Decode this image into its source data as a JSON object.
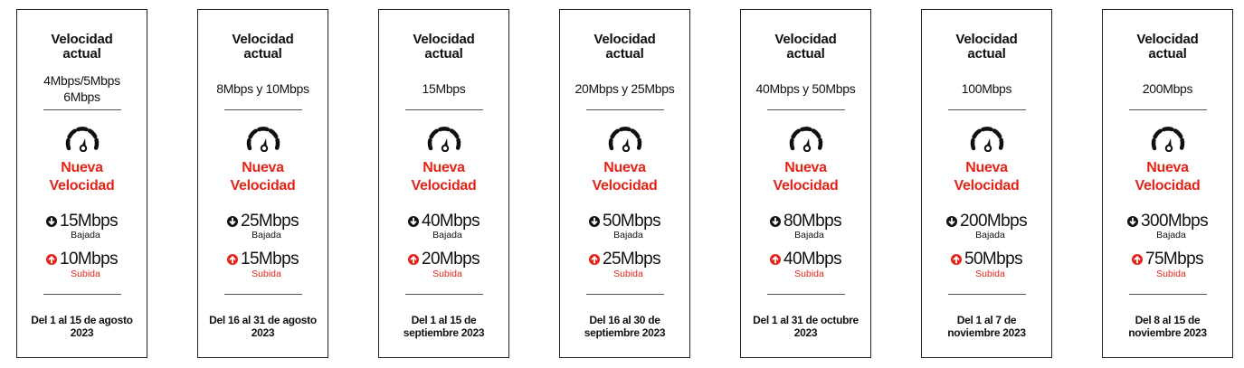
{
  "colors": {
    "accent_red": "#e1251b",
    "text": "#111111",
    "border": "#222222"
  },
  "icons": {
    "gauge": "speedometer-icon",
    "down": "download-arrow-icon",
    "up": "upload-arrow-icon"
  },
  "cards": [
    {
      "title": "Velocidad\nactual",
      "current": "4Mbps/5Mbps\n6Mbps",
      "new_label": "Nueva\nVelocidad",
      "down": "15Mbps",
      "down_label": "Bajada",
      "up": "10Mbps",
      "up_label": "Subida",
      "period": "Del 1 al 15 de agosto\n2023"
    },
    {
      "title": "Velocidad\nactual",
      "current": "8Mbps y 10Mbps",
      "new_label": "Nueva\nVelocidad",
      "down": "25Mbps",
      "down_label": "Bajada",
      "up": "15Mbps",
      "up_label": "Subida",
      "period": "Del 16 al 31 de agosto\n2023"
    },
    {
      "title": "Velocidad\nactual",
      "current": "15Mbps",
      "new_label": "Nueva\nVelocidad",
      "down": "40Mbps",
      "down_label": "Bajada",
      "up": "20Mbps",
      "up_label": "Subida",
      "period": "Del 1 al 15 de\nseptiembre 2023"
    },
    {
      "title": "Velocidad\nactual",
      "current": "20Mbps y 25Mbps",
      "new_label": "Nueva\nVelocidad",
      "down": "50Mbps",
      "down_label": "Bajada",
      "up": "25Mbps",
      "up_label": "Subida",
      "period": "Del 16 al 30 de\nseptiembre 2023"
    },
    {
      "title": "Velocidad\nactual",
      "current": "40Mbps y 50Mbps",
      "new_label": "Nueva\nVelocidad",
      "down": "80Mbps",
      "down_label": "Bajada",
      "up": "40Mbps",
      "up_label": "Subida",
      "period": "Del 1 al 31 de octubre\n2023"
    },
    {
      "title": "Velocidad\nactual",
      "current": "100Mbps",
      "new_label": "Nueva\nVelocidad",
      "down": "200Mbps",
      "down_label": "Bajada",
      "up": "50Mbps",
      "up_label": "Subida",
      "period": "Del 1 al 7 de\nnoviembre 2023"
    },
    {
      "title": "Velocidad\nactual",
      "current": "200Mbps",
      "new_label": "Nueva\nVelocidad",
      "down": "300Mbps",
      "down_label": "Bajada",
      "up": "75Mbps",
      "up_label": "Subida",
      "period": "Del 8 al 15 de\nnoviembre 2023"
    }
  ]
}
